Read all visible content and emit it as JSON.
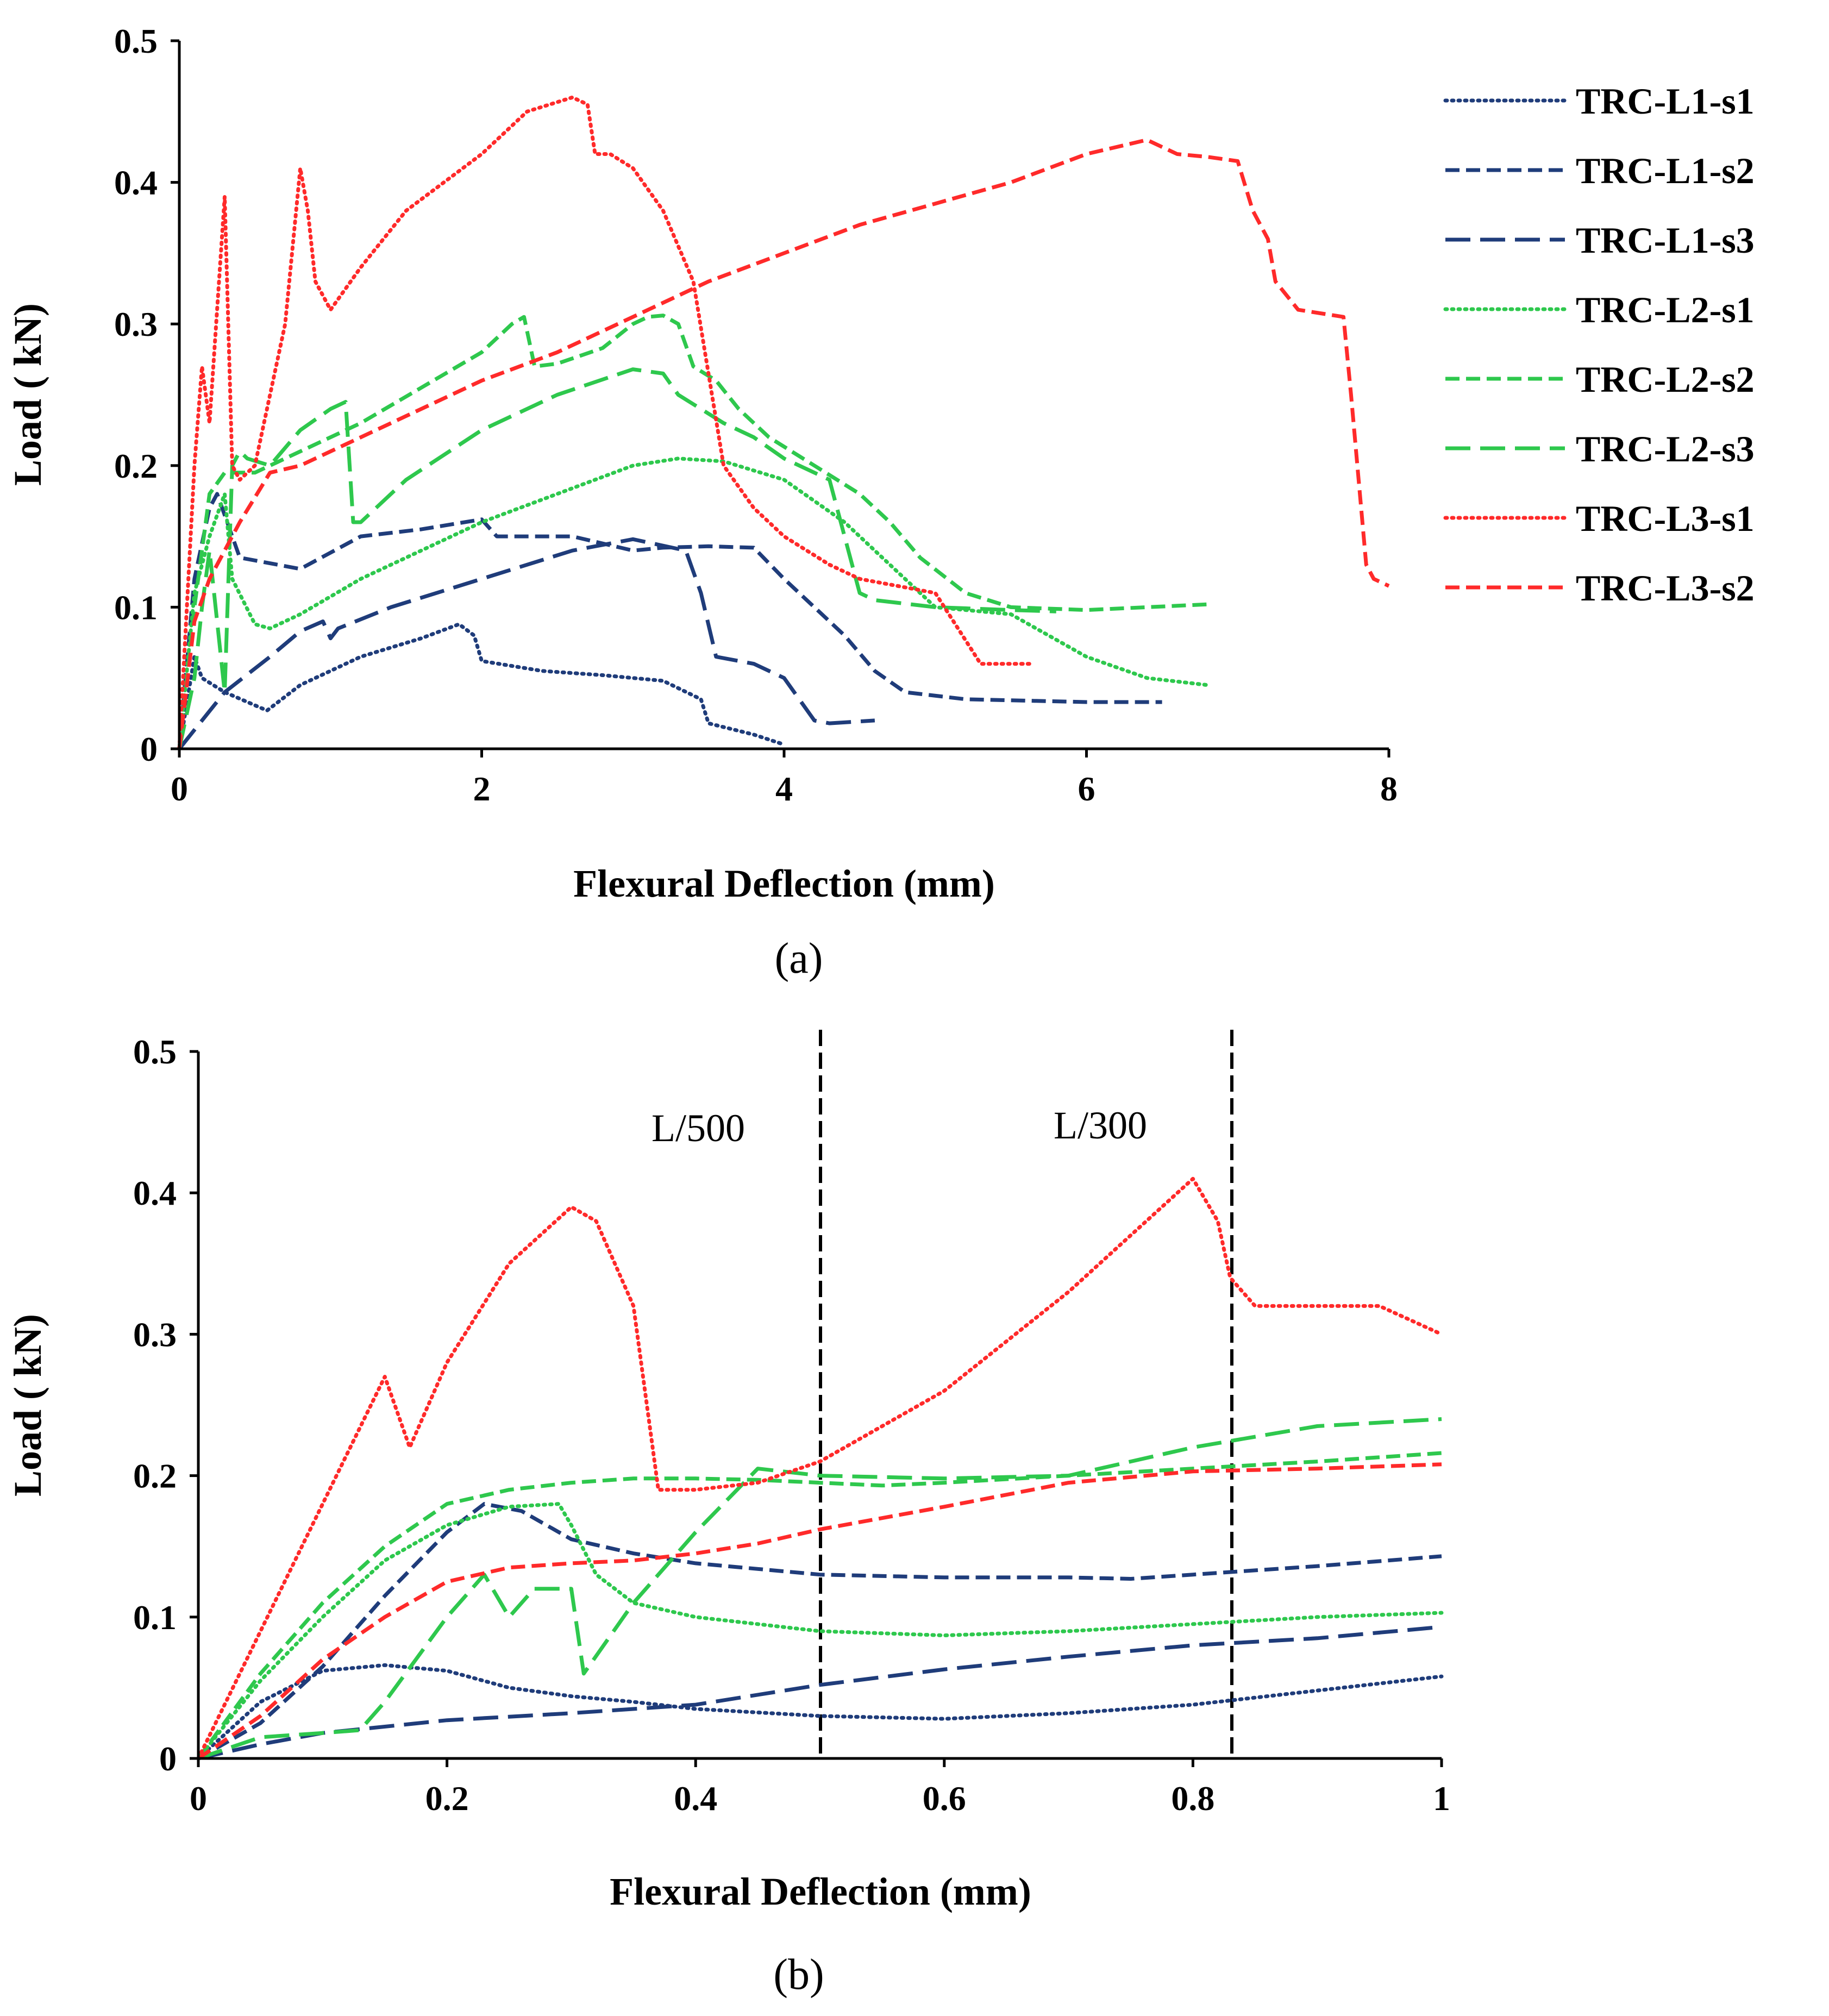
{
  "chart_data": [
    {
      "type": "line",
      "panel": "a",
      "caption": "(a)",
      "xlabel": "Flexural Deflection (mm)",
      "ylabel": "Load ( kN)",
      "xlim": [
        0,
        8
      ],
      "ylim": [
        0,
        0.5
      ],
      "xticks": [
        "0",
        "2",
        "4",
        "6",
        "8"
      ],
      "xtick_values": [
        0,
        2,
        4,
        6,
        8
      ],
      "yticks": [
        "0",
        "0.1",
        "0.2",
        "0.3",
        "0.4",
        "0.5"
      ],
      "ytick_values": [
        0,
        0.1,
        0.2,
        0.3,
        0.4,
        0.5
      ],
      "grid": false,
      "legend": "right",
      "series": [
        {
          "name": "TRC-L1-s1",
          "color": "#1f3c7a",
          "style": "dotted",
          "x": [
            0,
            0.1,
            0.15,
            0.3,
            0.58,
            0.8,
            1.2,
            1.6,
            1.85,
            1.95,
            2.0,
            2.4,
            2.8,
            3.2,
            3.45,
            3.5,
            3.8,
            4.0
          ],
          "y": [
            0,
            0.065,
            0.05,
            0.04,
            0.027,
            0.045,
            0.065,
            0.078,
            0.088,
            0.08,
            0.062,
            0.055,
            0.052,
            0.048,
            0.035,
            0.018,
            0.01,
            0.003
          ]
        },
        {
          "name": "TRC-L1-s2",
          "color": "#1f3c7a",
          "style": "dash",
          "x": [
            0,
            0.1,
            0.2,
            0.25,
            0.4,
            0.8,
            1.2,
            1.6,
            2.0,
            2.1,
            2.6,
            3.0,
            3.2,
            3.5,
            3.8,
            4.0,
            4.2,
            4.4,
            4.6,
            4.8,
            5.2,
            6.0,
            6.5
          ],
          "y": [
            0,
            0.12,
            0.17,
            0.18,
            0.135,
            0.127,
            0.15,
            0.155,
            0.162,
            0.15,
            0.15,
            0.14,
            0.142,
            0.143,
            0.142,
            0.12,
            0.1,
            0.08,
            0.055,
            0.04,
            0.035,
            0.033,
            0.033
          ]
        },
        {
          "name": "TRC-L1-s3",
          "color": "#1f3c7a",
          "style": "longdash",
          "x": [
            0,
            0.3,
            0.6,
            0.8,
            0.95,
            1.0,
            1.05,
            1.4,
            2.0,
            2.6,
            3.0,
            3.35,
            3.45,
            3.55,
            3.8,
            4.0,
            4.2,
            4.3,
            4.6
          ],
          "y": [
            0,
            0.04,
            0.065,
            0.083,
            0.09,
            0.078,
            0.085,
            0.1,
            0.12,
            0.14,
            0.148,
            0.14,
            0.11,
            0.065,
            0.06,
            0.05,
            0.02,
            0.018,
            0.02
          ]
        },
        {
          "name": "TRC-L2-s1",
          "color": "#2ec84d",
          "style": "dotted",
          "x": [
            0,
            0.1,
            0.2,
            0.3,
            0.35,
            0.5,
            0.6,
            0.8,
            1.2,
            1.6,
            2.0,
            2.5,
            3.0,
            3.3,
            3.6,
            4.0,
            4.4,
            4.6,
            5.0,
            5.5,
            6.0,
            6.4,
            6.8
          ],
          "y": [
            0,
            0.11,
            0.15,
            0.18,
            0.12,
            0.088,
            0.085,
            0.095,
            0.12,
            0.14,
            0.16,
            0.18,
            0.2,
            0.205,
            0.203,
            0.19,
            0.16,
            0.14,
            0.1,
            0.095,
            0.065,
            0.05,
            0.045
          ]
        },
        {
          "name": "TRC-L2-s2",
          "color": "#2ec84d",
          "style": "dash",
          "x": [
            0,
            0.1,
            0.2,
            0.3,
            0.5,
            0.8,
            1.2,
            1.6,
            2.0,
            2.2,
            2.28,
            2.35,
            2.5,
            2.8,
            3.0,
            3.1,
            3.2,
            3.3,
            3.4,
            3.55,
            3.7,
            3.9,
            4.2,
            4.5,
            4.7,
            4.9,
            5.2,
            5.5,
            6.0,
            6.8
          ],
          "y": [
            0,
            0.1,
            0.18,
            0.195,
            0.195,
            0.21,
            0.23,
            0.255,
            0.28,
            0.3,
            0.305,
            0.27,
            0.272,
            0.283,
            0.3,
            0.305,
            0.306,
            0.3,
            0.27,
            0.26,
            0.24,
            0.22,
            0.2,
            0.18,
            0.16,
            0.135,
            0.11,
            0.1,
            0.098,
            0.102
          ]
        },
        {
          "name": "TRC-L2-s3",
          "color": "#2ec84d",
          "style": "longdash",
          "x": [
            0,
            0.1,
            0.15,
            0.2,
            0.3,
            0.35,
            0.4,
            0.45,
            0.6,
            0.8,
            1.0,
            1.1,
            1.15,
            1.2,
            1.5,
            2.0,
            2.5,
            3.0,
            3.2,
            3.3,
            3.6,
            3.8,
            4.0,
            4.2,
            4.3,
            4.4,
            4.5,
            4.6,
            5.0,
            5.5,
            5.8
          ],
          "y": [
            0,
            0.05,
            0.1,
            0.14,
            0.04,
            0.2,
            0.21,
            0.205,
            0.2,
            0.225,
            0.24,
            0.245,
            0.16,
            0.16,
            0.19,
            0.225,
            0.25,
            0.268,
            0.265,
            0.25,
            0.23,
            0.22,
            0.205,
            0.195,
            0.19,
            0.15,
            0.11,
            0.105,
            0.1,
            0.098,
            0.097
          ]
        },
        {
          "name": "TRC-L3-s1",
          "color": "#ff2a2a",
          "style": "dotted",
          "x": [
            0,
            0.05,
            0.1,
            0.15,
            0.2,
            0.3,
            0.35,
            0.4,
            0.5,
            0.7,
            0.8,
            0.85,
            0.9,
            1.0,
            1.2,
            1.5,
            2.0,
            2.3,
            2.6,
            2.7,
            2.75,
            2.85,
            3.0,
            3.2,
            3.4,
            3.6,
            3.8,
            4.0,
            4.3,
            4.5,
            5.0,
            5.3,
            5.65
          ],
          "y": [
            0,
            0.1,
            0.2,
            0.27,
            0.23,
            0.39,
            0.2,
            0.19,
            0.2,
            0.3,
            0.41,
            0.38,
            0.33,
            0.31,
            0.34,
            0.38,
            0.42,
            0.45,
            0.46,
            0.455,
            0.42,
            0.42,
            0.41,
            0.38,
            0.33,
            0.2,
            0.17,
            0.15,
            0.13,
            0.12,
            0.11,
            0.06,
            0.06
          ]
        },
        {
          "name": "TRC-L3-s2",
          "color": "#ff2a2a",
          "style": "dash",
          "x": [
            0,
            0.1,
            0.2,
            0.4,
            0.6,
            0.8,
            1.0,
            1.5,
            2.0,
            2.5,
            3.0,
            3.5,
            4.0,
            4.5,
            5.0,
            5.5,
            6.0,
            6.4,
            6.5,
            6.6,
            6.8,
            7.0,
            7.1,
            7.2,
            7.25,
            7.4,
            7.7,
            7.75,
            7.85,
            7.9,
            8.0
          ],
          "y": [
            0,
            0.09,
            0.12,
            0.16,
            0.195,
            0.2,
            0.21,
            0.235,
            0.26,
            0.28,
            0.305,
            0.33,
            0.35,
            0.37,
            0.385,
            0.4,
            0.42,
            0.43,
            0.425,
            0.42,
            0.418,
            0.415,
            0.38,
            0.36,
            0.33,
            0.31,
            0.305,
            0.25,
            0.13,
            0.12,
            0.115
          ]
        }
      ]
    },
    {
      "type": "line",
      "panel": "b",
      "caption": "(b)",
      "xlabel": "Flexural Deflection (mm)",
      "ylabel": "Load ( kN)",
      "xlim": [
        0,
        1
      ],
      "ylim": [
        0,
        0.5
      ],
      "xticks": [
        "0",
        "0.2",
        "0.4",
        "0.6",
        "0.8",
        "1"
      ],
      "xtick_values": [
        0,
        0.2,
        0.4,
        0.6,
        0.8,
        1
      ],
      "yticks": [
        "0",
        "0.1",
        "0.2",
        "0.3",
        "0.4",
        "0.5"
      ],
      "ytick_values": [
        0,
        0.1,
        0.2,
        0.3,
        0.4,
        0.5
      ],
      "grid": false,
      "annotations": [
        {
          "text": "L/500",
          "x": 0.5
        },
        {
          "text": "L/300",
          "x": 0.833
        }
      ],
      "series": [
        {
          "name": "TRC-L1-s1",
          "color": "#1f3c7a",
          "style": "dotted",
          "x": [
            0,
            0.05,
            0.1,
            0.15,
            0.2,
            0.25,
            0.3,
            0.35,
            0.4,
            0.5,
            0.6,
            0.7,
            0.8,
            0.9,
            1.0
          ],
          "y": [
            0,
            0.04,
            0.062,
            0.066,
            0.062,
            0.05,
            0.044,
            0.04,
            0.035,
            0.03,
            0.028,
            0.032,
            0.038,
            0.048,
            0.058
          ]
        },
        {
          "name": "TRC-L1-s2",
          "color": "#1f3c7a",
          "style": "dash",
          "x": [
            0,
            0.05,
            0.1,
            0.15,
            0.2,
            0.23,
            0.26,
            0.3,
            0.35,
            0.4,
            0.5,
            0.6,
            0.7,
            0.75,
            0.8,
            0.9,
            1.0
          ],
          "y": [
            0,
            0.025,
            0.065,
            0.115,
            0.16,
            0.18,
            0.175,
            0.155,
            0.145,
            0.138,
            0.13,
            0.128,
            0.128,
            0.127,
            0.13,
            0.136,
            0.143
          ]
        },
        {
          "name": "TRC-L1-s3",
          "color": "#1f3c7a",
          "style": "longdash",
          "x": [
            0,
            0.05,
            0.1,
            0.2,
            0.3,
            0.4,
            0.5,
            0.6,
            0.7,
            0.8,
            0.9,
            1.0
          ],
          "y": [
            0,
            0.01,
            0.018,
            0.027,
            0.032,
            0.038,
            0.052,
            0.063,
            0.072,
            0.08,
            0.085,
            0.093
          ]
        },
        {
          "name": "TRC-L2-s1",
          "color": "#2ec84d",
          "style": "dotted",
          "x": [
            0,
            0.05,
            0.1,
            0.15,
            0.2,
            0.25,
            0.29,
            0.3,
            0.32,
            0.35,
            0.4,
            0.5,
            0.6,
            0.7,
            0.8,
            0.9,
            1.0
          ],
          "y": [
            0,
            0.055,
            0.1,
            0.14,
            0.165,
            0.178,
            0.18,
            0.165,
            0.13,
            0.11,
            0.1,
            0.09,
            0.087,
            0.09,
            0.095,
            0.1,
            0.103
          ]
        },
        {
          "name": "TRC-L2-s2",
          "color": "#2ec84d",
          "style": "dash",
          "x": [
            0,
            0.05,
            0.1,
            0.15,
            0.2,
            0.25,
            0.3,
            0.35,
            0.4,
            0.45,
            0.5,
            0.55,
            0.6,
            0.7,
            0.8,
            0.9,
            1.0
          ],
          "y": [
            0,
            0.06,
            0.11,
            0.15,
            0.18,
            0.19,
            0.195,
            0.198,
            0.198,
            0.197,
            0.195,
            0.193,
            0.195,
            0.2,
            0.205,
            0.21,
            0.216
          ]
        },
        {
          "name": "TRC-L2-s3",
          "color": "#2ec84d",
          "style": "longdash",
          "x": [
            0,
            0.05,
            0.1,
            0.13,
            0.15,
            0.2,
            0.23,
            0.25,
            0.27,
            0.3,
            0.31,
            0.35,
            0.4,
            0.45,
            0.5,
            0.6,
            0.7,
            0.8,
            0.9,
            1.0
          ],
          "y": [
            0,
            0.015,
            0.018,
            0.02,
            0.04,
            0.1,
            0.13,
            0.1,
            0.12,
            0.12,
            0.06,
            0.11,
            0.16,
            0.205,
            0.2,
            0.198,
            0.2,
            0.22,
            0.235,
            0.24
          ]
        },
        {
          "name": "TRC-L3-s1",
          "color": "#ff2a2a",
          "style": "dotted",
          "x": [
            0,
            0.05,
            0.1,
            0.15,
            0.17,
            0.2,
            0.25,
            0.3,
            0.32,
            0.35,
            0.37,
            0.4,
            0.45,
            0.5,
            0.6,
            0.7,
            0.8,
            0.82,
            0.83,
            0.85,
            0.9,
            0.95,
            1.0
          ],
          "y": [
            0,
            0.09,
            0.18,
            0.27,
            0.22,
            0.28,
            0.35,
            0.39,
            0.38,
            0.32,
            0.19,
            0.19,
            0.195,
            0.21,
            0.26,
            0.33,
            0.41,
            0.38,
            0.34,
            0.32,
            0.32,
            0.32,
            0.3
          ]
        },
        {
          "name": "TRC-L3-s2",
          "color": "#ff2a2a",
          "style": "dash",
          "x": [
            0,
            0.05,
            0.1,
            0.15,
            0.2,
            0.25,
            0.3,
            0.35,
            0.4,
            0.45,
            0.5,
            0.6,
            0.7,
            0.8,
            0.9,
            1.0
          ],
          "y": [
            0,
            0.03,
            0.07,
            0.1,
            0.125,
            0.135,
            0.138,
            0.14,
            0.145,
            0.152,
            0.162,
            0.178,
            0.195,
            0.203,
            0.205,
            0.208
          ]
        }
      ]
    }
  ]
}
